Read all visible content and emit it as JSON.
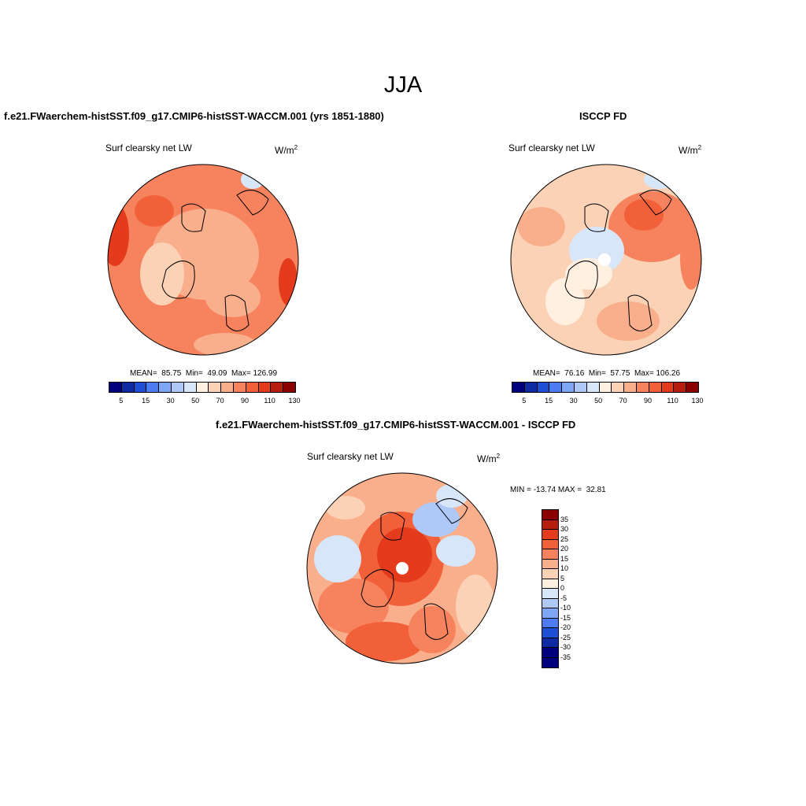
{
  "figure": {
    "season": "JJA"
  },
  "panels": [
    {
      "title": "f.e21.FWaerchem-histSST.f09_g17.CMIP6-histSST-WACCM.001 (yrs 1851-1880)",
      "variable": "Surf clearsky net LW",
      "units": "W/m",
      "units_sup": "2",
      "stats": "MEAN=  85.75  Min=  49.09  Max= 126.99"
    },
    {
      "title": "ISCCP FD",
      "variable": "Surf clearsky net LW",
      "units": "W/m",
      "units_sup": "2",
      "stats": "MEAN=  76.16  Min=  57.75  Max= 106.26"
    },
    {
      "title": "f.e21.FWaerchem-histSST.f09_g17.CMIP6-histSST-WACCM.001 - ISCCP FD",
      "variable": "Surf clearsky net LW",
      "units": "W/m",
      "units_sup": "2",
      "stats": "MIN = -13.74 MAX =  32.81"
    }
  ],
  "colorbar_abs": {
    "tick_labels": [
      "5",
      "15",
      "30",
      "50",
      "70",
      "90",
      "110",
      "130"
    ],
    "colors": [
      "#00007f",
      "#0e2ba3",
      "#1f4fd6",
      "#4c7cf0",
      "#7fa5f5",
      "#aec8f7",
      "#d7e6f8",
      "#fff0e0",
      "#fcd2b6",
      "#f9ae8c",
      "#f6835e",
      "#f2603a",
      "#e33b1c",
      "#b51e0c",
      "#8b0000"
    ]
  },
  "colorbar_diff": {
    "tick_labels": [
      "35",
      "30",
      "25",
      "20",
      "15",
      "10",
      "5",
      "0",
      "-5",
      "-10",
      "-15",
      "-20",
      "-25",
      "-30",
      "-35"
    ],
    "colors": [
      "#8b0000",
      "#b51e0c",
      "#e33b1c",
      "#f2603a",
      "#f6835e",
      "#f9ae8c",
      "#fcd2b6",
      "#fff0e0",
      "#d7e6f8",
      "#aec8f7",
      "#7fa5f5",
      "#4c7cf0",
      "#1f4fd6",
      "#0e2ba3",
      "#00007f",
      "#00007f"
    ]
  },
  "map_fields": {
    "base_color_left": "#f79a72",
    "base_color_right": "#fcd2b6",
    "base_color_diff": "#f6835e"
  }
}
